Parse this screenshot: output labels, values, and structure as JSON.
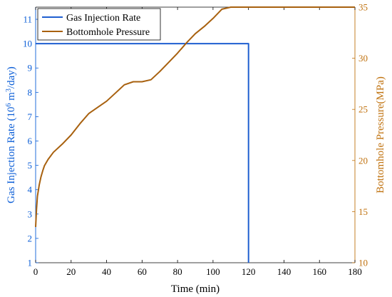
{
  "chart_data": {
    "type": "line",
    "xlabel": "Time (min)",
    "xlim": [
      0,
      180
    ],
    "xticks": [
      0,
      20,
      40,
      60,
      80,
      100,
      120,
      140,
      160,
      180
    ],
    "yleft": {
      "label_main": "Gas Injection Rate (10",
      "label_sup": "6",
      "label_mid": " m",
      "label_sup2": "3",
      "label_end": "/day)",
      "lim": [
        1,
        11.5
      ],
      "ticks": [
        1,
        2,
        3,
        4,
        5,
        6,
        7,
        8,
        9,
        10,
        11
      ],
      "color": "#0b5ed7"
    },
    "yright": {
      "label": "Bottomhole Pressure(MPa)",
      "lim": [
        10,
        35
      ],
      "ticks": [
        10,
        15,
        20,
        25,
        30,
        35
      ],
      "color": "#c0720f"
    },
    "legend_position": "top-left",
    "series": [
      {
        "name": "Gas Injection Rate",
        "axis": "left",
        "color": "#1f5fd0",
        "x": [
          0,
          120,
          120
        ],
        "y": [
          10,
          10,
          1
        ]
      },
      {
        "name": "Bottomhole Pressure",
        "axis": "right",
        "color": "#a8610f",
        "x": [
          0,
          0.5,
          1,
          2,
          3,
          4,
          5,
          7,
          10,
          15,
          20,
          25,
          30,
          35,
          40,
          45,
          50,
          55,
          60,
          65,
          70,
          75,
          80,
          85,
          90,
          95,
          100,
          105,
          110,
          115,
          118,
          120,
          121,
          123,
          125,
          127,
          130,
          135,
          140,
          145,
          150,
          155,
          160,
          165,
          170,
          175,
          180
        ],
        "y": [
          13.5,
          15.2,
          16.5,
          17.6,
          18.4,
          19.0,
          19.5,
          20.1,
          20.8,
          21.6,
          22.5,
          23.6,
          24.6,
          25.2,
          25.8,
          26.6,
          27.4,
          27.7,
          27.7,
          27.9,
          28.7,
          29.6,
          30.5,
          31.5,
          32.4,
          33.1,
          33.9,
          34.8,
          35.7,
          36.6,
          37.2,
          37.6,
          37.5,
          37.4,
          37.3,
          37.1,
          37.0,
          36.8,
          36.6,
          36.4,
          36.0,
          35.8,
          35.6,
          35.5,
          35.4,
          35.3,
          35.2
        ]
      }
    ]
  }
}
